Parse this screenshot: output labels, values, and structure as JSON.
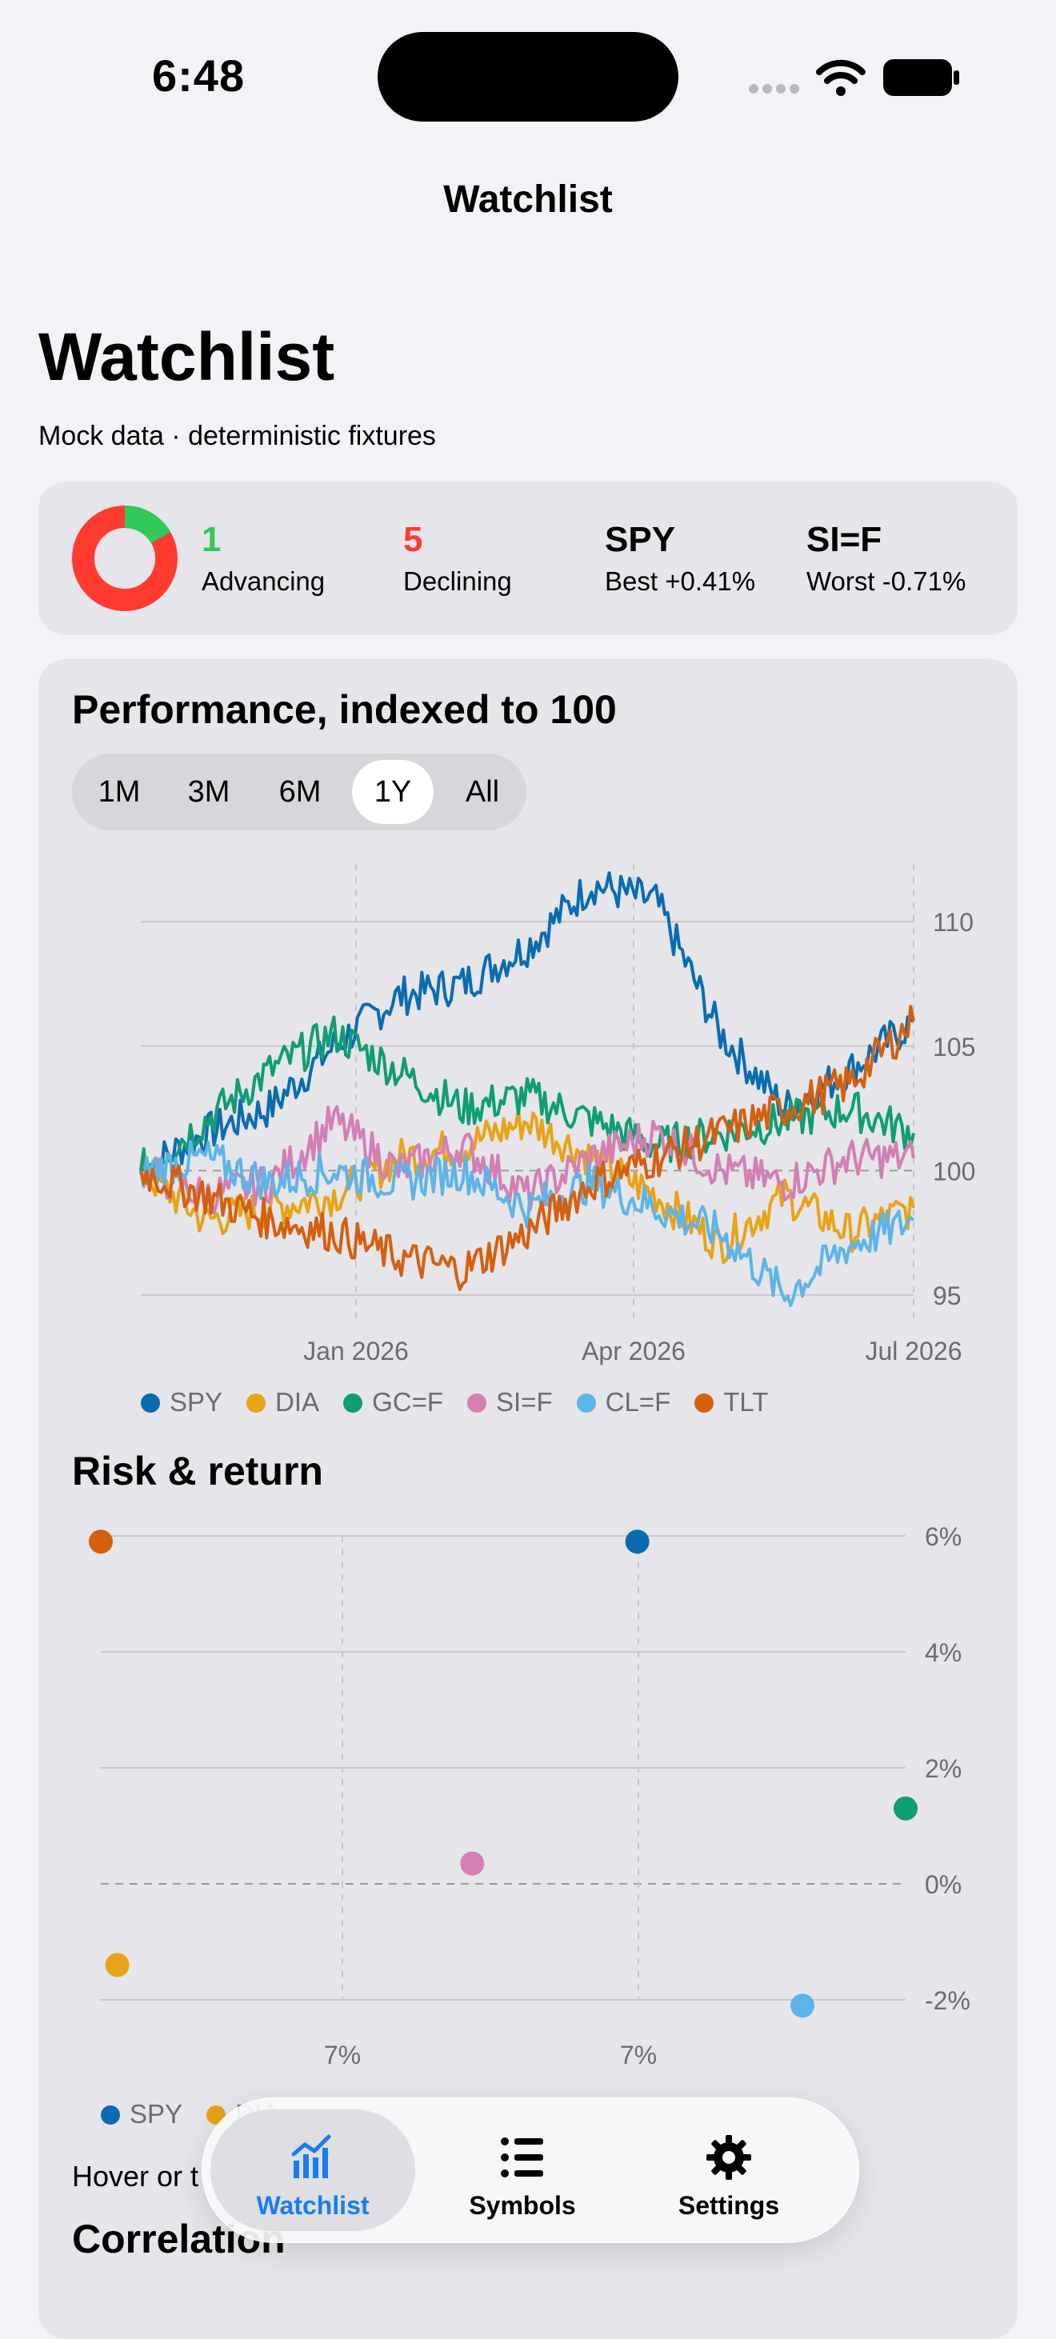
{
  "status_bar": {
    "time": "6:48"
  },
  "nav": {
    "title": "Watchlist"
  },
  "header": {
    "title": "Watchlist",
    "subtitle": "Mock data · deterministic fixtures"
  },
  "summary": {
    "donut": {
      "advancing_fraction": 0.1667,
      "advancing_color": "#34c759",
      "declining_color": "#ff3b30"
    },
    "advancing_count": "1",
    "advancing_label": "Advancing",
    "declining_count": "5",
    "declining_label": "Declining",
    "best_symbol": "SPY",
    "best_label": "Best +0.41%",
    "worst_symbol": "SI=F",
    "worst_label": "Worst -0.71%"
  },
  "performance": {
    "title": "Performance, indexed to 100",
    "ranges": [
      "1M",
      "3M",
      "6M",
      "1Y",
      "All"
    ],
    "selected_range": "1Y"
  },
  "risk": {
    "title": "Risk & return",
    "hint": "Hover or t"
  },
  "correlation": {
    "title": "Correlation"
  },
  "colors": {
    "SPY": "#0a6cb0",
    "DIA": "#e8a317",
    "GC=F": "#0f9d74",
    "SI=F": "#d27fb4",
    "CL=F": "#5db4e8",
    "TLT": "#d4600f"
  },
  "chart_data": [
    {
      "type": "line",
      "title": "Performance, indexed to 100",
      "x_ticks": [
        "Jan 2026",
        "Apr 2026",
        "Jul 2026"
      ],
      "y_ticks": [
        "110",
        "105",
        "100",
        "95"
      ],
      "ylim": [
        94,
        112
      ],
      "grid": true,
      "legend": "bottom",
      "x": [
        "Jul 2025",
        "Aug 2025",
        "Sep 2025",
        "Oct 2025",
        "Nov 2025",
        "Dec 2025",
        "Jan 2026",
        "Feb 2026",
        "Mar 2026",
        "Apr 2026",
        "May 2026",
        "Jun 2026",
        "Jul 2026"
      ],
      "series": [
        {
          "name": "SPY",
          "values": [
            100,
            101.5,
            102.5,
            105,
            107,
            107.5,
            109,
            111.5,
            110.8,
            105.5,
            102.5,
            104,
            106
          ]
        },
        {
          "name": "DIA",
          "values": [
            100,
            98,
            98.5,
            99,
            100.5,
            101,
            102,
            100.5,
            99,
            97,
            99,
            97.5,
            98.5
          ]
        },
        {
          "name": "GC=F",
          "values": [
            100,
            102,
            104,
            105.5,
            104,
            102.5,
            103,
            102,
            101,
            101.5,
            102,
            102.5,
            101.5
          ]
        },
        {
          "name": "SI=F",
          "values": [
            100,
            99,
            99.5,
            102,
            100,
            101,
            99,
            100.5,
            101.5,
            100,
            99.5,
            100.5,
            100.5
          ]
        },
        {
          "name": "CL=F",
          "values": [
            100,
            100.5,
            99.5,
            100,
            99.5,
            100,
            98.5,
            99.5,
            98.5,
            97.5,
            95,
            97,
            98
          ]
        },
        {
          "name": "TLT",
          "values": [
            100,
            99,
            98,
            97.5,
            96.5,
            96,
            97.5,
            99.5,
            100.5,
            101.5,
            102.5,
            103.5,
            106
          ]
        }
      ]
    },
    {
      "type": "scatter",
      "title": "Risk & return",
      "x_ticks": [
        "7%",
        "7%"
      ],
      "y_ticks": [
        "6%",
        "4%",
        "2%",
        "0%",
        "-2%"
      ],
      "xlim": [
        6.76,
        7.15
      ],
      "ylim": [
        -2.3,
        6.2
      ],
      "legend": "bottom",
      "points": [
        {
          "name": "TLT",
          "x": 6.76,
          "y": 5.9
        },
        {
          "name": "SPY",
          "x": 7.02,
          "y": 5.9
        },
        {
          "name": "GC=F",
          "x": 7.15,
          "y": 1.3
        },
        {
          "name": "SI=F",
          "x": 6.94,
          "y": 0.35
        },
        {
          "name": "DIA",
          "x": 6.768,
          "y": -1.4
        },
        {
          "name": "CL=F",
          "x": 7.1,
          "y": -2.1
        }
      ]
    }
  ],
  "tabbar": {
    "tabs": [
      {
        "label": "Watchlist",
        "icon": "chart-bars-icon"
      },
      {
        "label": "Symbols",
        "icon": "list-icon"
      },
      {
        "label": "Settings",
        "icon": "gear-icon"
      }
    ],
    "selected": "Watchlist",
    "accent": "#1a7cf2"
  }
}
